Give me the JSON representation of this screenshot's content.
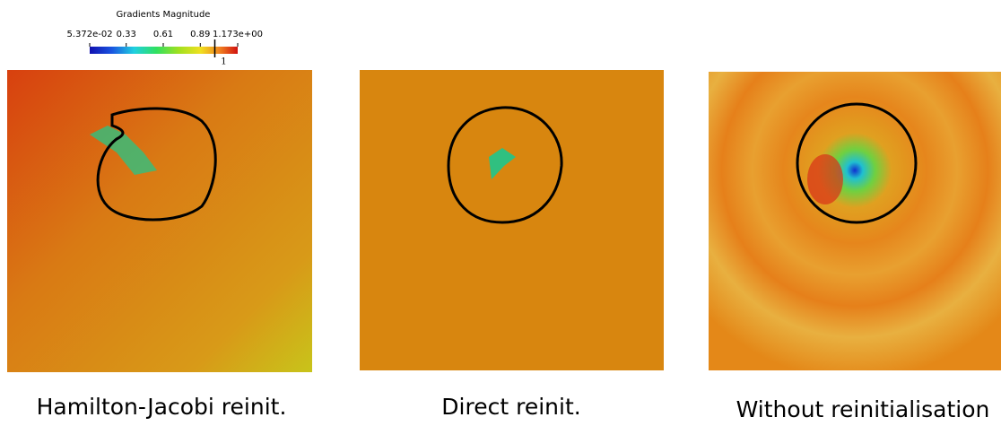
{
  "colorbar": {
    "title": "Gradients Magnitude",
    "range": [
      0.05372,
      1.173
    ],
    "ticks": [
      {
        "value": 0.05372,
        "label": "5.372e-02"
      },
      0.33,
      0.61,
      0.89,
      {
        "value": 1.173,
        "label": "1.173e+00"
      }
    ],
    "marker": {
      "value": 1,
      "label": "1"
    }
  },
  "panels": [
    {
      "caption": "Hamilton-Jacobi reinit."
    },
    {
      "caption": "Direct reinit."
    },
    {
      "caption": "Without reinitialisation"
    }
  ]
}
